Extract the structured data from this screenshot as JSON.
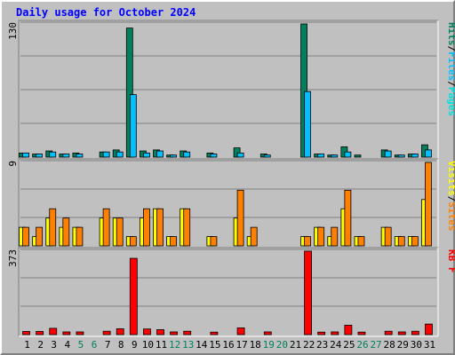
{
  "title": "Daily usage for October 2024",
  "colors": {
    "background": "#c0c0c0",
    "title": "#0000ff",
    "hits": "#00805c",
    "files": "#00c0ff",
    "pages": "#00e0e0",
    "visits": "#ffff00",
    "sites": "#ff8000",
    "kbytes": "#ff0000",
    "weekday_label": "#000000",
    "weekend_label": "#00805c"
  },
  "chart_data": [
    {
      "type": "bar",
      "panel": "top",
      "ymax_label": "130",
      "ylim": [
        0,
        130
      ],
      "legend": [
        {
          "label": "Pages",
          "color": "#00e0e0"
        },
        {
          "label": "/",
          "color": "#000000"
        },
        {
          "label": "Files",
          "color": "#00c0ff"
        },
        {
          "label": "/",
          "color": "#000000"
        },
        {
          "label": "Hits",
          "color": "#00805c"
        }
      ],
      "categories": [
        "1",
        "2",
        "3",
        "4",
        "5",
        "6",
        "7",
        "8",
        "9",
        "10",
        "11",
        "12",
        "13",
        "14",
        "15",
        "16",
        "17",
        "18",
        "19",
        "20",
        "21",
        "22",
        "23",
        "24",
        "25",
        "26",
        "27",
        "28",
        "29",
        "30",
        "31"
      ],
      "series": [
        {
          "name": "Hits",
          "values": [
            4,
            3,
            6,
            3,
            4,
            0,
            5,
            7,
            126,
            6,
            7,
            2,
            6,
            0,
            4,
            0,
            9,
            0,
            3,
            0,
            0,
            130,
            3,
            2,
            10,
            2,
            0,
            7,
            2,
            3,
            12
          ]
        },
        {
          "name": "Files",
          "values": [
            4,
            3,
            5,
            3,
            3,
            0,
            5,
            5,
            61,
            4,
            6,
            2,
            5,
            0,
            3,
            0,
            4,
            0,
            2,
            0,
            0,
            64,
            3,
            2,
            5,
            0,
            0,
            6,
            2,
            3,
            7
          ]
        }
      ]
    },
    {
      "type": "bar",
      "panel": "middle",
      "ymax_label": "9",
      "ylim": [
        0,
        9
      ],
      "legend": [
        {
          "label": "Sites",
          "color": "#ff8000"
        },
        {
          "label": "/",
          "color": "#000000"
        },
        {
          "label": "Visits",
          "color": "#ffff00"
        }
      ],
      "categories": [
        "1",
        "2",
        "3",
        "4",
        "5",
        "6",
        "7",
        "8",
        "9",
        "10",
        "11",
        "12",
        "13",
        "14",
        "15",
        "16",
        "17",
        "18",
        "19",
        "20",
        "21",
        "22",
        "23",
        "24",
        "25",
        "26",
        "27",
        "28",
        "29",
        "30",
        "31"
      ],
      "series": [
        {
          "name": "Visits",
          "values": [
            2,
            1,
            3,
            2,
            2,
            0,
            3,
            3,
            1,
            3,
            4,
            1,
            4,
            0,
            1,
            0,
            3,
            1,
            0,
            0,
            0,
            1,
            2,
            1,
            4,
            1,
            0,
            2,
            1,
            1,
            5
          ]
        },
        {
          "name": "Sites",
          "values": [
            2,
            2,
            4,
            3,
            2,
            0,
            4,
            3,
            1,
            4,
            4,
            1,
            4,
            0,
            1,
            0,
            6,
            2,
            0,
            0,
            0,
            1,
            2,
            2,
            6,
            1,
            0,
            2,
            1,
            1,
            9
          ]
        }
      ]
    },
    {
      "type": "bar",
      "panel": "bottom",
      "ymax_label": "373",
      "ylim": [
        0,
        373
      ],
      "legend": [
        {
          "label": "KB F",
          "color": "#ff0000"
        }
      ],
      "categories": [
        "1",
        "2",
        "3",
        "4",
        "5",
        "6",
        "7",
        "8",
        "9",
        "10",
        "11",
        "12",
        "13",
        "14",
        "15",
        "16",
        "17",
        "18",
        "19",
        "20",
        "21",
        "22",
        "23",
        "24",
        "25",
        "26",
        "27",
        "28",
        "29",
        "30",
        "31"
      ],
      "series": [
        {
          "name": "KB F",
          "values": [
            14,
            14,
            28,
            12,
            12,
            0,
            15,
            26,
            341,
            25,
            22,
            12,
            15,
            0,
            11,
            0,
            30,
            0,
            12,
            0,
            0,
            373,
            11,
            12,
            42,
            11,
            0,
            15,
            12,
            15,
            47
          ]
        }
      ]
    }
  ],
  "x_labels": [
    {
      "text": "1",
      "weekend": false
    },
    {
      "text": "2",
      "weekend": false
    },
    {
      "text": "3",
      "weekend": false
    },
    {
      "text": "4",
      "weekend": false
    },
    {
      "text": "5",
      "weekend": true
    },
    {
      "text": "6",
      "weekend": true
    },
    {
      "text": "7",
      "weekend": false
    },
    {
      "text": "8",
      "weekend": false
    },
    {
      "text": "9",
      "weekend": false
    },
    {
      "text": "10",
      "weekend": false
    },
    {
      "text": "11",
      "weekend": false
    },
    {
      "text": "12",
      "weekend": true
    },
    {
      "text": "13",
      "weekend": true
    },
    {
      "text": "14",
      "weekend": false
    },
    {
      "text": "15",
      "weekend": false
    },
    {
      "text": "16",
      "weekend": false
    },
    {
      "text": "17",
      "weekend": false
    },
    {
      "text": "18",
      "weekend": false
    },
    {
      "text": "19",
      "weekend": true
    },
    {
      "text": "20",
      "weekend": true
    },
    {
      "text": "21",
      "weekend": false
    },
    {
      "text": "22",
      "weekend": false
    },
    {
      "text": "23",
      "weekend": false
    },
    {
      "text": "24",
      "weekend": false
    },
    {
      "text": "25",
      "weekend": false
    },
    {
      "text": "26",
      "weekend": true
    },
    {
      "text": "27",
      "weekend": true
    },
    {
      "text": "28",
      "weekend": false
    },
    {
      "text": "29",
      "weekend": false
    },
    {
      "text": "30",
      "weekend": false
    },
    {
      "text": "31",
      "weekend": false
    }
  ]
}
